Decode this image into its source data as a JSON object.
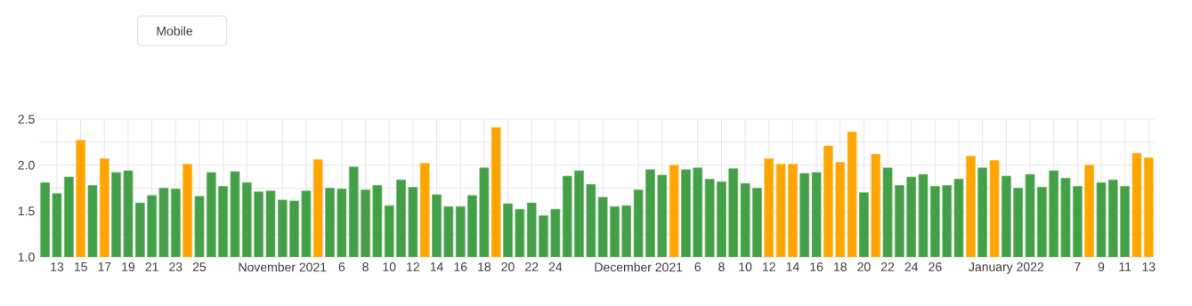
{
  "chart_data": {
    "type": "bar",
    "annotations": [
      "Mobile"
    ],
    "x": [
      "2021-10-12",
      "2021-10-13",
      "2021-10-14",
      "2021-10-15",
      "2021-10-16",
      "2021-10-17",
      "2021-10-18",
      "2021-10-19",
      "2021-10-20",
      "2021-10-21",
      "2021-10-22",
      "2021-10-23",
      "2021-10-24",
      "2021-10-25",
      "2021-10-26",
      "2021-10-27",
      "2021-10-28",
      "2021-10-29",
      "2021-10-30",
      "2021-10-31",
      "2021-11-01",
      "2021-11-02",
      "2021-11-03",
      "2021-11-04",
      "2021-11-05",
      "2021-11-06",
      "2021-11-07",
      "2021-11-08",
      "2021-11-09",
      "2021-11-10",
      "2021-11-11",
      "2021-11-12",
      "2021-11-13",
      "2021-11-14",
      "2021-11-15",
      "2021-11-16",
      "2021-11-17",
      "2021-11-18",
      "2021-11-19",
      "2021-11-20",
      "2021-11-21",
      "2021-11-22",
      "2021-11-23",
      "2021-11-24",
      "2021-11-25",
      "2021-11-26",
      "2021-11-27",
      "2021-11-28",
      "2021-11-29",
      "2021-11-30",
      "2021-12-01",
      "2021-12-02",
      "2021-12-03",
      "2021-12-04",
      "2021-12-05",
      "2021-12-06",
      "2021-12-07",
      "2021-12-08",
      "2021-12-09",
      "2021-12-10",
      "2021-12-11",
      "2021-12-12",
      "2021-12-13",
      "2021-12-14",
      "2021-12-15",
      "2021-12-16",
      "2021-12-17",
      "2021-12-18",
      "2021-12-19",
      "2021-12-20",
      "2021-12-21",
      "2021-12-22",
      "2021-12-23",
      "2021-12-24",
      "2021-12-25",
      "2021-12-26",
      "2021-12-27",
      "2021-12-28",
      "2021-12-29",
      "2021-12-30",
      "2021-12-31",
      "2022-01-01",
      "2022-01-02",
      "2022-01-03",
      "2022-01-04",
      "2022-01-05",
      "2022-01-06",
      "2022-01-07",
      "2022-01-08",
      "2022-01-09",
      "2022-01-10",
      "2022-01-11",
      "2022-01-12",
      "2022-01-13"
    ],
    "values": [
      1.81,
      1.69,
      1.87,
      2.27,
      1.78,
      2.07,
      1.92,
      1.94,
      1.59,
      1.67,
      1.75,
      1.74,
      2.01,
      1.66,
      1.92,
      1.77,
      1.93,
      1.81,
      1.71,
      1.72,
      1.62,
      1.61,
      1.72,
      2.06,
      1.75,
      1.74,
      1.98,
      1.73,
      1.78,
      1.56,
      1.84,
      1.76,
      2.02,
      1.68,
      1.55,
      1.55,
      1.67,
      1.97,
      2.41,
      1.58,
      1.52,
      1.59,
      1.45,
      1.52,
      1.88,
      1.94,
      1.79,
      1.65,
      1.55,
      1.56,
      1.73,
      1.95,
      1.89,
      2.0,
      1.95,
      1.97,
      1.85,
      1.82,
      1.96,
      1.8,
      1.75,
      2.07,
      2.01,
      2.01,
      1.91,
      1.92,
      2.21,
      2.03,
      2.36,
      1.7,
      2.12,
      1.97,
      1.78,
      1.87,
      1.9,
      1.77,
      1.78,
      1.85,
      2.1,
      1.97,
      2.05,
      1.88,
      1.75,
      1.9,
      1.76,
      1.94,
      1.86,
      1.77,
      2.0,
      1.81,
      1.84,
      1.77,
      2.13,
      2.08
    ],
    "colors": [
      "#43a047",
      "#43a047",
      "#43a047",
      "#ffa500",
      "#43a047",
      "#ffa500",
      "#43a047",
      "#43a047",
      "#43a047",
      "#43a047",
      "#43a047",
      "#43a047",
      "#ffa500",
      "#43a047",
      "#43a047",
      "#43a047",
      "#43a047",
      "#43a047",
      "#43a047",
      "#43a047",
      "#43a047",
      "#43a047",
      "#43a047",
      "#ffa500",
      "#43a047",
      "#43a047",
      "#43a047",
      "#43a047",
      "#43a047",
      "#43a047",
      "#43a047",
      "#43a047",
      "#ffa500",
      "#43a047",
      "#43a047",
      "#43a047",
      "#43a047",
      "#43a047",
      "#ffa500",
      "#43a047",
      "#43a047",
      "#43a047",
      "#43a047",
      "#43a047",
      "#43a047",
      "#43a047",
      "#43a047",
      "#43a047",
      "#43a047",
      "#43a047",
      "#43a047",
      "#43a047",
      "#43a047",
      "#ffa500",
      "#43a047",
      "#43a047",
      "#43a047",
      "#43a047",
      "#43a047",
      "#43a047",
      "#43a047",
      "#ffa500",
      "#ffa500",
      "#ffa500",
      "#43a047",
      "#43a047",
      "#ffa500",
      "#ffa500",
      "#ffa500",
      "#43a047",
      "#ffa500",
      "#43a047",
      "#43a047",
      "#43a047",
      "#43a047",
      "#43a047",
      "#43a047",
      "#43a047",
      "#ffa500",
      "#43a047",
      "#ffa500",
      "#43a047",
      "#43a047",
      "#43a047",
      "#43a047",
      "#43a047",
      "#43a047",
      "#43a047",
      "#ffa500",
      "#43a047",
      "#43a047",
      "#43a047",
      "#ffa500",
      "#ffa500"
    ],
    "xlim": [
      "2021-10-11T12:00",
      "2022-01-13T12:00"
    ],
    "xticks": [
      {
        "value": "2021-10-13",
        "label": "13"
      },
      {
        "value": "2021-10-15",
        "label": "15"
      },
      {
        "value": "2021-10-17",
        "label": "17"
      },
      {
        "value": "2021-10-19",
        "label": "19"
      },
      {
        "value": "2021-10-21",
        "label": "21"
      },
      {
        "value": "2021-10-23",
        "label": "23"
      },
      {
        "value": "2021-10-25",
        "label": "25"
      },
      {
        "value": "2021-10-27",
        "label": null
      },
      {
        "value": "2021-10-29",
        "label": null
      },
      {
        "value": "2021-11-01",
        "label": "November 2021"
      },
      {
        "value": "2021-11-03",
        "label": null
      },
      {
        "value": "2021-11-06",
        "label": "6"
      },
      {
        "value": "2021-11-08",
        "label": "8"
      },
      {
        "value": "2021-11-10",
        "label": "10"
      },
      {
        "value": "2021-11-12",
        "label": "12"
      },
      {
        "value": "2021-11-14",
        "label": "14"
      },
      {
        "value": "2021-11-16",
        "label": "16"
      },
      {
        "value": "2021-11-18",
        "label": "18"
      },
      {
        "value": "2021-11-20",
        "label": "20"
      },
      {
        "value": "2021-11-22",
        "label": "22"
      },
      {
        "value": "2021-11-24",
        "label": "24"
      },
      {
        "value": "2021-11-26",
        "label": null
      },
      {
        "value": "2021-11-28",
        "label": null
      },
      {
        "value": "2021-12-01",
        "label": "December 2021"
      },
      {
        "value": "2021-12-03",
        "label": null
      },
      {
        "value": "2021-12-06",
        "label": "6"
      },
      {
        "value": "2021-12-08",
        "label": "8"
      },
      {
        "value": "2021-12-10",
        "label": "10"
      },
      {
        "value": "2021-12-12",
        "label": "12"
      },
      {
        "value": "2021-12-14",
        "label": "14"
      },
      {
        "value": "2021-12-16",
        "label": "16"
      },
      {
        "value": "2021-12-18",
        "label": "18"
      },
      {
        "value": "2021-12-20",
        "label": "20"
      },
      {
        "value": "2021-12-22",
        "label": "22"
      },
      {
        "value": "2021-12-24",
        "label": "24"
      },
      {
        "value": "2021-12-26",
        "label": "26"
      },
      {
        "value": "2021-12-28",
        "label": null
      },
      {
        "value": "2021-12-30",
        "label": null
      },
      {
        "value": "2022-01-01",
        "label": "January 2022"
      },
      {
        "value": "2022-01-03",
        "label": null
      },
      {
        "value": "2022-01-05",
        "label": null
      },
      {
        "value": "2022-01-07",
        "label": "7"
      },
      {
        "value": "2022-01-09",
        "label": "9"
      },
      {
        "value": "2022-01-11",
        "label": "11"
      },
      {
        "value": "2022-01-13",
        "label": "13"
      }
    ],
    "ylim": [
      1.0,
      2.5
    ],
    "yticks": [
      {
        "value": 1.0,
        "label": "1.0"
      },
      {
        "value": 1.25,
        "label": null
      },
      {
        "value": 1.5,
        "label": "1.5"
      },
      {
        "value": 1.75,
        "label": null
      },
      {
        "value": 2.0,
        "label": "2.0"
      },
      {
        "value": 2.25,
        "label": null
      },
      {
        "value": 2.5,
        "label": "2.5"
      }
    ],
    "grid": true
  }
}
